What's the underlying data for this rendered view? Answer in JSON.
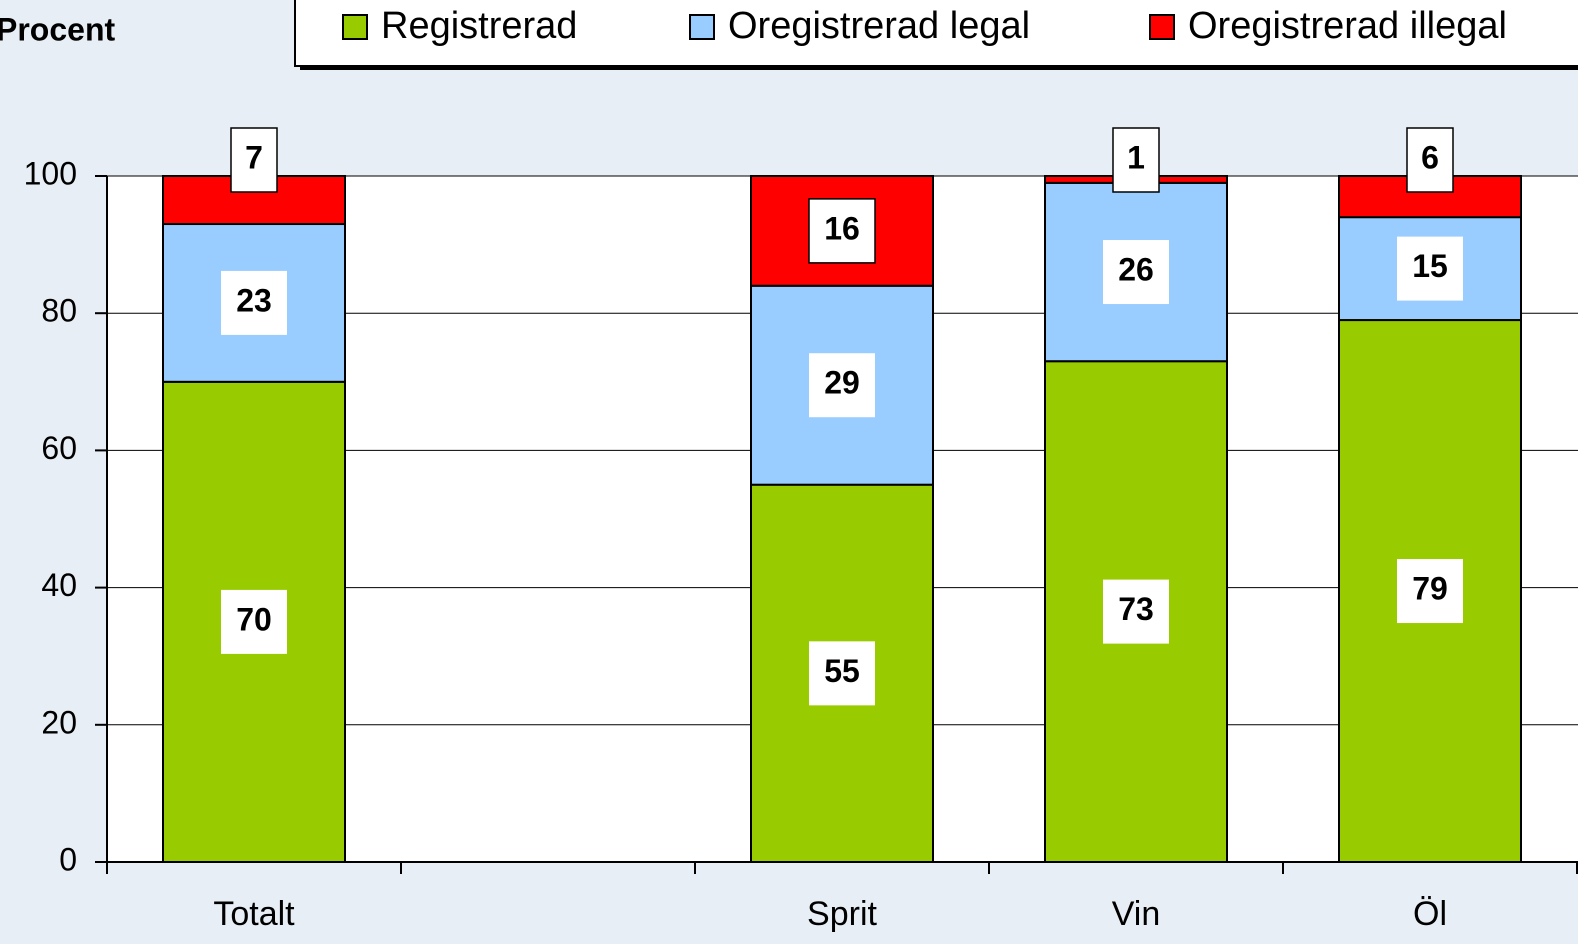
{
  "chart_data": {
    "type": "stacked_bar",
    "y_label": "Procent",
    "categories": [
      "Totalt",
      null,
      "Sprit",
      "Vin",
      "Öl"
    ],
    "series": [
      {
        "name": "Registrerad",
        "color": "#99cc00",
        "values": [
          70,
          null,
          55,
          73,
          79
        ]
      },
      {
        "name": "Oregistrerad legal",
        "color": "#99ccff",
        "values": [
          23,
          null,
          29,
          26,
          15
        ]
      },
      {
        "name": "Oregistrerad illegal",
        "color": "#ff0000",
        "values": [
          7,
          null,
          16,
          1,
          6
        ]
      }
    ],
    "ylim": [
      0,
      100
    ],
    "yticks": [
      0,
      20,
      40,
      60,
      80,
      100
    ],
    "grid": true,
    "legend": "top"
  }
}
